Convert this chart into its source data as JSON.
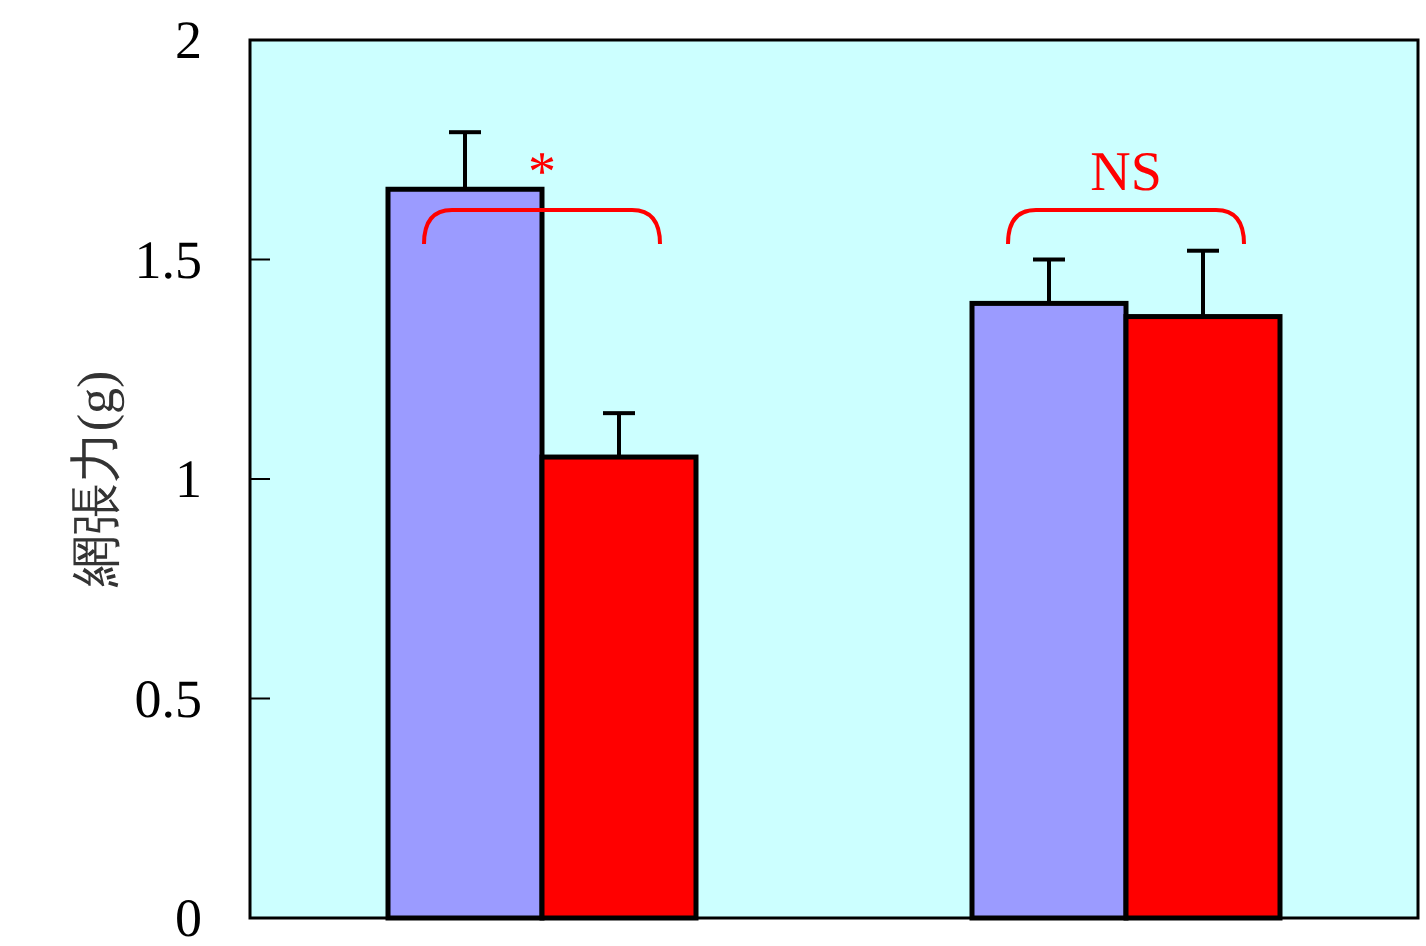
{
  "chart_data": {
    "type": "bar",
    "ylabel": "網張力(g)",
    "categories": [
      null,
      null
    ],
    "series": [
      {
        "color": "#9b9bff",
        "values": [
          1.66,
          1.4
        ],
        "errors": [
          [
            1.66,
            1.79
          ],
          [
            1.4,
            1.5
          ]
        ]
      },
      {
        "color": "#ff0000",
        "values": [
          1.05,
          1.37
        ],
        "errors": [
          [
            1.05,
            1.15
          ],
          [
            1.37,
            1.52
          ]
        ]
      }
    ],
    "ylim": [
      0,
      2
    ],
    "yticks": [
      0,
      0.5,
      1,
      1.5,
      2
    ],
    "tick_labels": "y",
    "grid": false,
    "annotations": [
      "*",
      "NS"
    ]
  }
}
